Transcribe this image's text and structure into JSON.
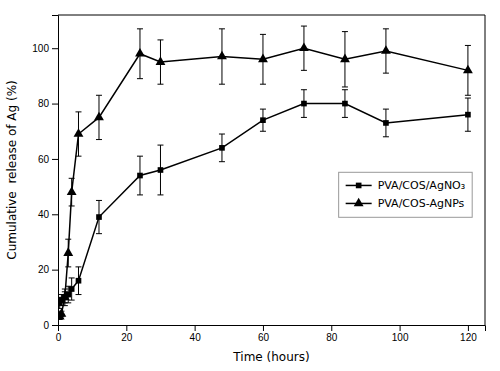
{
  "chart_data": {
    "type": "line",
    "xlabel": "Time (hours)",
    "ylabel": "Cumulative  release of Ag (%)",
    "x": [
      0.5,
      1,
      2,
      3,
      4,
      6,
      12,
      24,
      30,
      48,
      60,
      72,
      84,
      96,
      120
    ],
    "series": [
      {
        "name": "PVA/COS/AgNO₃",
        "color": "#000000",
        "marker": "square",
        "line_style": "solid",
        "values": [
          8,
          9,
          10,
          11,
          13,
          16,
          39,
          54,
          56,
          64,
          74,
          80,
          80,
          73,
          76
        ],
        "errors": [
          2,
          2,
          2,
          3,
          4,
          5,
          6,
          7,
          9,
          5,
          4,
          5,
          5,
          5,
          6
        ]
      },
      {
        "name": "PVA/COS-AgNPs",
        "color": "#000000",
        "marker": "triangle",
        "line_style": "solid",
        "values": [
          3,
          4,
          10,
          26,
          48,
          69,
          75,
          98,
          95,
          97,
          96,
          100,
          96,
          99,
          92
        ],
        "errors": [
          1,
          1,
          3,
          5,
          5,
          8,
          8,
          9,
          8,
          10,
          9,
          8,
          10,
          8,
          9
        ]
      }
    ],
    "xlim": [
      0,
      125
    ],
    "ylim": [
      0,
      112
    ],
    "xticks": [
      0,
      20,
      40,
      60,
      80,
      100,
      120
    ],
    "yticks": [
      0,
      20,
      40,
      60,
      80,
      100
    ],
    "grid": false,
    "legend": "right"
  }
}
